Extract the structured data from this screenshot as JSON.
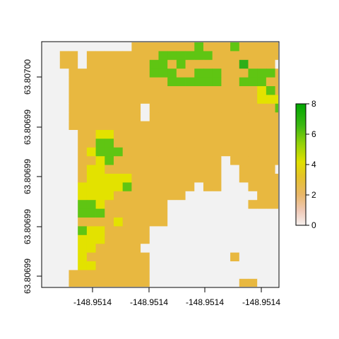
{
  "chart_data": {
    "type": "heatmap",
    "title": "",
    "xlabel": "",
    "ylabel": "",
    "x_tick_labels": [
      "-148.9514",
      "-148.9514",
      "-148.9514",
      "-148.9514"
    ],
    "y_tick_labels": [
      "63.80700",
      "63.80699",
      "63.80699",
      "63.80699",
      "63.80699"
    ],
    "legend": {
      "position": "right",
      "ticks": [
        "0",
        "2",
        "4",
        "6",
        "8"
      ],
      "range": [
        0,
        8
      ]
    },
    "colors": {
      "na": "#f2f2f2",
      "level_0": "#f2c5b8",
      "level_2": "#e8b840",
      "level_4": "#e3e200",
      "level_6": "#5fc513",
      "level_7": "#2eae18",
      "level_8": "#00a600"
    },
    "grid_codes": {
      ".": "no data",
      "o": 2,
      "Y": 4,
      "G": 6,
      "D": 7
    },
    "grid": [
      "..........oooooooGoooGooooo...",
      "..oo.ooooooooGGGGGGooooooooo..",
      "..oo.oooooooGGoGooooooDooo....",
      "...oooooooooGGGooGGGoooGGGoo..",
      "...oooooooooooGGGGGGooGGGooo..",
      "...oooooooooooooooooooooYGoo..",
      "...oooooooooooooooooooooYYYGo.",
      "...oooooooo.ooooooooooooooGooo",
      "...oooooooo.oooooooooooooooooo",
      "...oooooooooooooooooooooooooooo",
      "....ooYYoooooooooooooooooooooo",
      "....ooGGoooooooooooooooooooooo",
      "....oYGGGooooooooooooooooooo..",
      "....ooYGoooooooooooo.oooooo...",
      "....oYYooooooooooooo..oooo....",
      "....oYYYYYoooooooooo..ooooo...",
      "....YYYYYGooooooo.oo...oooooo.",
      "....YYYYoooooooo........oooo..",
      "....GGYooooooo.........oooo...",
      "....GGGooooooo................",
      "....ooooYooooo................",
      "....GYYooooo..................",
      "....YYYooooo..................",
      "....YYooooo...................",
      "....Yooooooo.........o........",
      "....YYoooooo..................",
      "...ooooooooo..................",
      "...ooooooooo..........oo......",
      "...ooooo.o.o..........oo......",
      "..ooooooo.....................",
      "..oooooooo....................",
      "..oooooooo....................",
      "..ooooooo.....................",
      "..oooooo......................",
      "...........................",
      ".........................."
    ]
  }
}
